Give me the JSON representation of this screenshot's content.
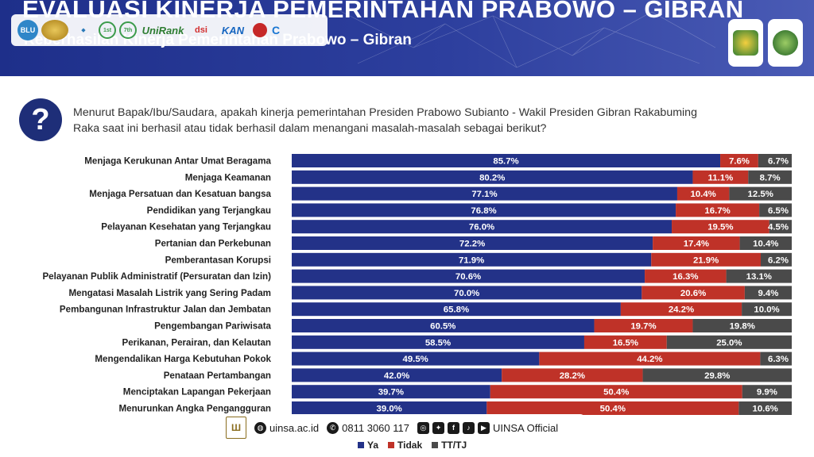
{
  "header": {
    "title": "EVALUASI KINERJA PEMERINTAHAN PRABOWO – GIBRAN",
    "subtitle": "Keberhasilan Kinerja Pemerintahan Prabowo – Gibran",
    "logos": {
      "blu": "BLU",
      "unirank": "UniRank",
      "kan": "KAN",
      "first": "1st",
      "seventh": "7th",
      "dsi": "dsi"
    }
  },
  "question": {
    "icon": "question-mark-icon",
    "symbol": "?",
    "text": "Menurut Bapak/Ibu/Saudara, apakah kinerja pemerintahan Presiden Prabowo Subianto  - Wakil Presiden Gibran Rakabuming Raka saat ini berhasil atau tidak berhasil dalam menangani masalah-masalah sebagai berikut?"
  },
  "chart_data": {
    "type": "bar",
    "orientation": "horizontal",
    "stacked": true,
    "title": "Keberhasilan Kinerja Pemerintahan Prabowo – Gibran",
    "xlabel": "",
    "ylabel": "",
    "xlim": [
      0,
      100
    ],
    "grid": false,
    "legend_position": "bottom",
    "categories": [
      "Menjaga Kerukunan Antar Umat Beragama",
      "Menjaga Keamanan",
      "Menjaga Persatuan dan Kesatuan bangsa",
      "Pendidikan yang Terjangkau",
      "Pelayanan Kesehatan yang Terjangkau",
      "Pertanian dan Perkebunan",
      "Pemberantasan Korupsi",
      "Pelayanan Publik Administratif (Persuratan dan Izin)",
      "Mengatasi Masalah Listrik yang Sering Padam",
      "Pembangunan Infrastruktur Jalan dan Jembatan",
      "Pengembangan Pariwisata",
      "Perikanan, Perairan, dan Kelautan",
      "Mengendalikan Harga Kebutuhan Pokok",
      "Penataan Pertambangan",
      "Menciptakan Lapangan Pekerjaan",
      "Menurunkan Angka Pengangguran"
    ],
    "series": [
      {
        "name": "Ya",
        "color": "#233288",
        "values": [
          85.7,
          80.2,
          77.1,
          76.8,
          76.0,
          72.2,
          71.9,
          70.6,
          70.0,
          65.8,
          60.5,
          58.5,
          49.5,
          42.0,
          39.7,
          39.0
        ],
        "labels": [
          "85.7%",
          "80.2%",
          "77.1%",
          "76.8%",
          "76.0%",
          "72.2%",
          "71.9%",
          "70.6%",
          "70.0%",
          "65.8%",
          "60.5%",
          "58.5%",
          "49.5%",
          "42.0%",
          "39.7%",
          "39.0%"
        ]
      },
      {
        "name": "Tidak",
        "color": "#bf3228",
        "values": [
          7.6,
          11.1,
          10.4,
          16.7,
          19.5,
          17.4,
          21.9,
          16.3,
          20.6,
          24.2,
          19.7,
          16.5,
          44.2,
          28.2,
          50.4,
          50.4
        ],
        "labels": [
          "7.6%",
          "11.1%",
          "10.4%",
          "16.7%",
          "19.5%",
          "17.4%",
          "21.9%",
          "16.3%",
          "20.6%",
          "24.2%",
          "19.7%",
          "16.5%",
          "44.2%",
          "28.2%",
          "50.4%",
          "50.4%"
        ]
      },
      {
        "name": "TT/TJ",
        "color": "#4a4a4a",
        "values": [
          6.7,
          8.7,
          12.5,
          6.5,
          4.5,
          10.4,
          6.2,
          13.1,
          9.4,
          10.0,
          19.8,
          25.0,
          6.3,
          29.8,
          9.9,
          10.6
        ],
        "labels": [
          "6.7%",
          "8.7%",
          "12.5%",
          "6.5%",
          "4.5%",
          "10.4%",
          "6.2%",
          "13.1%",
          "9.4%",
          "10.0%",
          "19.8%",
          "25.0%",
          "6.3%",
          "29.8%",
          "9.9%",
          "10.6%"
        ]
      }
    ]
  },
  "footer": {
    "logo_text": "UINSA",
    "website": "uinsa.ac.id",
    "phone": "0811 3060 117",
    "social": "UINSA Official",
    "icons": [
      "globe-icon",
      "whatsapp-icon",
      "instagram-icon",
      "twitter-icon",
      "facebook-icon",
      "tiktok-icon",
      "youtube-icon"
    ]
  },
  "legend": {
    "items": [
      {
        "label": "Ya",
        "color": "#233288"
      },
      {
        "label": "Tidak",
        "color": "#bf3228"
      },
      {
        "label": "TT/TJ",
        "color": "#4a4a4a"
      }
    ]
  }
}
